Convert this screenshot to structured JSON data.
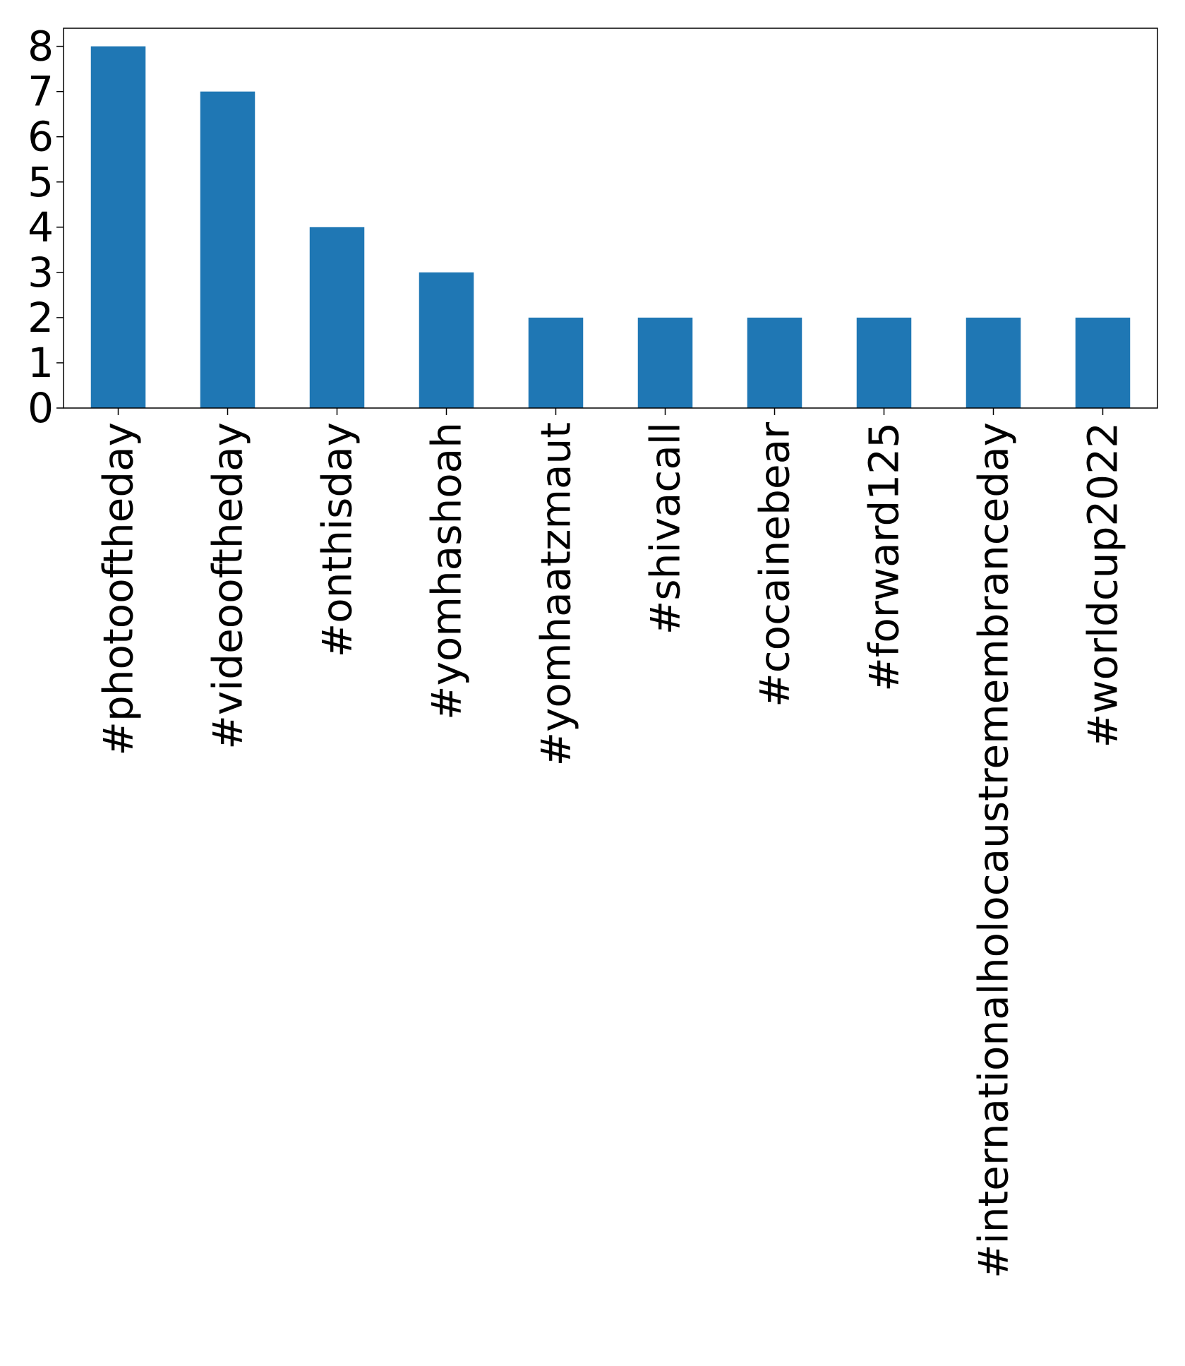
{
  "chart_data": {
    "type": "bar",
    "categories": [
      "#photooftheday",
      "#videooftheday",
      "#onthisday",
      "#yomhashoah",
      "#yomhaatzmaut",
      "#shivacall",
      "#cocainebear",
      "#forward125",
      "#internationalholocaustremembranceday",
      "#worldcup2022"
    ],
    "values": [
      8,
      7,
      4,
      3,
      2,
      2,
      2,
      2,
      2,
      2
    ],
    "title": "",
    "xlabel": "",
    "ylabel": "",
    "ylim": [
      0,
      8.4
    ],
    "yticks": [
      "0",
      "1",
      "2",
      "3",
      "4",
      "5",
      "6",
      "7",
      "8"
    ],
    "grid": false,
    "legend": "none",
    "bar_color": "#1f77b4",
    "x_tick_rotation": "vertical"
  }
}
